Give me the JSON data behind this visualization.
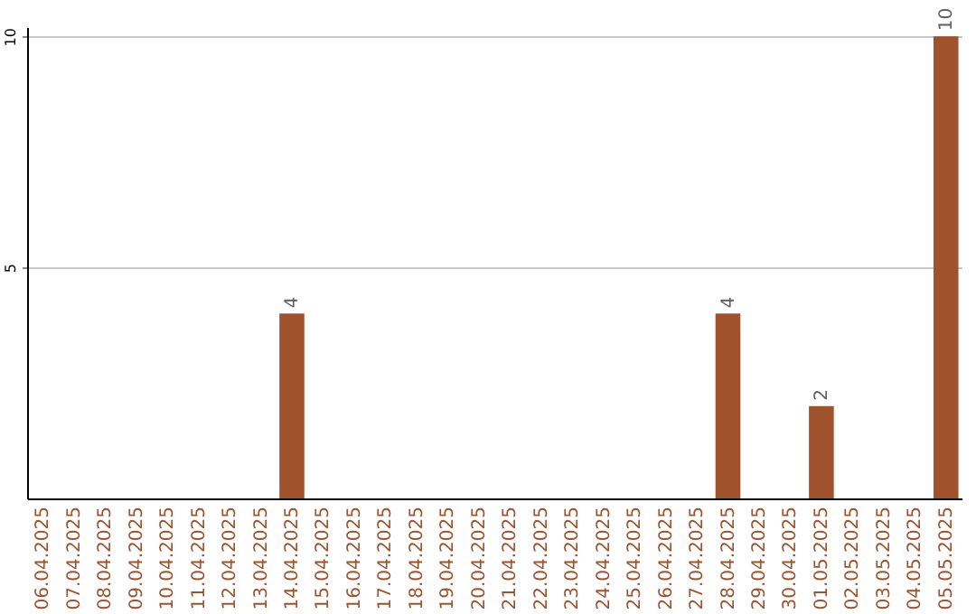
{
  "chart_data": {
    "type": "bar",
    "categories": [
      "06.04.2025",
      "07.04.2025",
      "08.04.2025",
      "09.04.2025",
      "10.04.2025",
      "11.04.2025",
      "12.04.2025",
      "13.04.2025",
      "14.04.2025",
      "15.04.2025",
      "16.04.2025",
      "17.04.2025",
      "18.04.2025",
      "19.04.2025",
      "20.04.2025",
      "21.04.2025",
      "22.04.2025",
      "23.04.2025",
      "24.04.2025",
      "25.04.2025",
      "26.04.2025",
      "27.04.2025",
      "28.04.2025",
      "29.04.2025",
      "30.04.2025",
      "01.05.2025",
      "02.05.2025",
      "03.05.2025",
      "04.05.2025",
      "05.05.2025"
    ],
    "values": [
      0,
      0,
      0,
      0,
      0,
      0,
      0,
      0,
      4,
      0,
      0,
      0,
      0,
      0,
      0,
      0,
      0,
      0,
      0,
      0,
      0,
      0,
      4,
      0,
      0,
      2,
      0,
      0,
      0,
      10
    ],
    "value_labels": [
      null,
      null,
      null,
      null,
      null,
      null,
      null,
      null,
      "4",
      null,
      null,
      null,
      null,
      null,
      null,
      null,
      null,
      null,
      null,
      null,
      null,
      null,
      "4",
      null,
      null,
      "2",
      null,
      null,
      null,
      "10"
    ],
    "color": "#a0522d",
    "ylim": [
      0,
      10.2
    ],
    "yticks": [
      5,
      10
    ],
    "grid": "y"
  }
}
